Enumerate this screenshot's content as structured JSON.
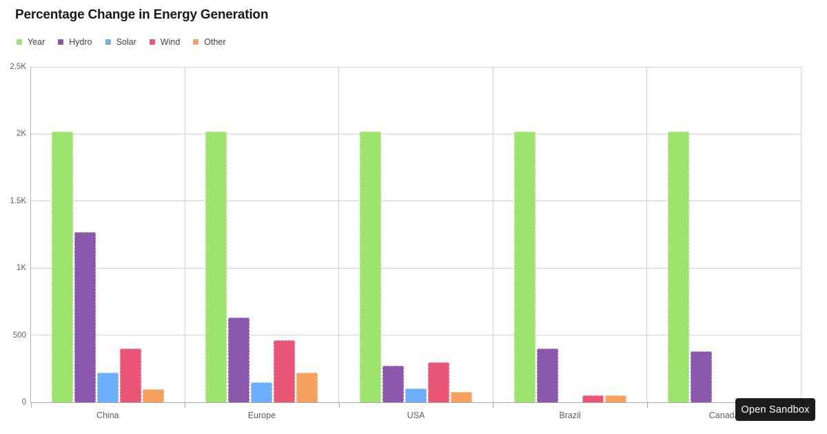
{
  "title": "Percentage Change in Energy Generation",
  "sandbox_button": {
    "label": "Open Sandbox"
  },
  "colors": {
    "year": "#9ce46e",
    "hydro": "#8a57ad",
    "solar": "#6caefa",
    "wind": "#eb5677",
    "other": "#f8a15e",
    "gridline": "#d4d4d4",
    "axis": "#a9a9a9",
    "button_bg": "#1a1c1d",
    "button_text": "#ffffff"
  },
  "chart_data": {
    "type": "bar",
    "title": "Percentage Change in Energy Generation",
    "categories": [
      "China",
      "Europe",
      "USA",
      "Brazil",
      "Canada"
    ],
    "series": [
      {
        "name": "Year",
        "color": "#9ce46e",
        "values": [
          2020,
          2020,
          2020,
          2020,
          2020
        ]
      },
      {
        "name": "Hydro",
        "color": "#8a57ad",
        "values": [
          1270,
          630,
          270,
          400,
          380
        ]
      },
      {
        "name": "Solar",
        "color": "#6caefa",
        "values": [
          220,
          150,
          105,
          0,
          0
        ]
      },
      {
        "name": "Wind",
        "color": "#eb5677",
        "values": [
          400,
          460,
          300,
          50,
          0
        ]
      },
      {
        "name": "Other",
        "color": "#f8a15e",
        "values": [
          100,
          220,
          75,
          50,
          0
        ]
      }
    ],
    "xlabel": "",
    "ylabel": "",
    "ylim": [
      0,
      2500
    ],
    "yticks": [
      {
        "value": 2500,
        "label": "2.5K"
      },
      {
        "value": 2000,
        "label": "2K"
      },
      {
        "value": 1500,
        "label": "1.5K"
      },
      {
        "value": 1000,
        "label": "1K"
      },
      {
        "value": 500,
        "label": "500"
      },
      {
        "value": 0,
        "label": "0"
      }
    ],
    "grid": true,
    "legend_position": "top-left",
    "category_separators": true
  }
}
